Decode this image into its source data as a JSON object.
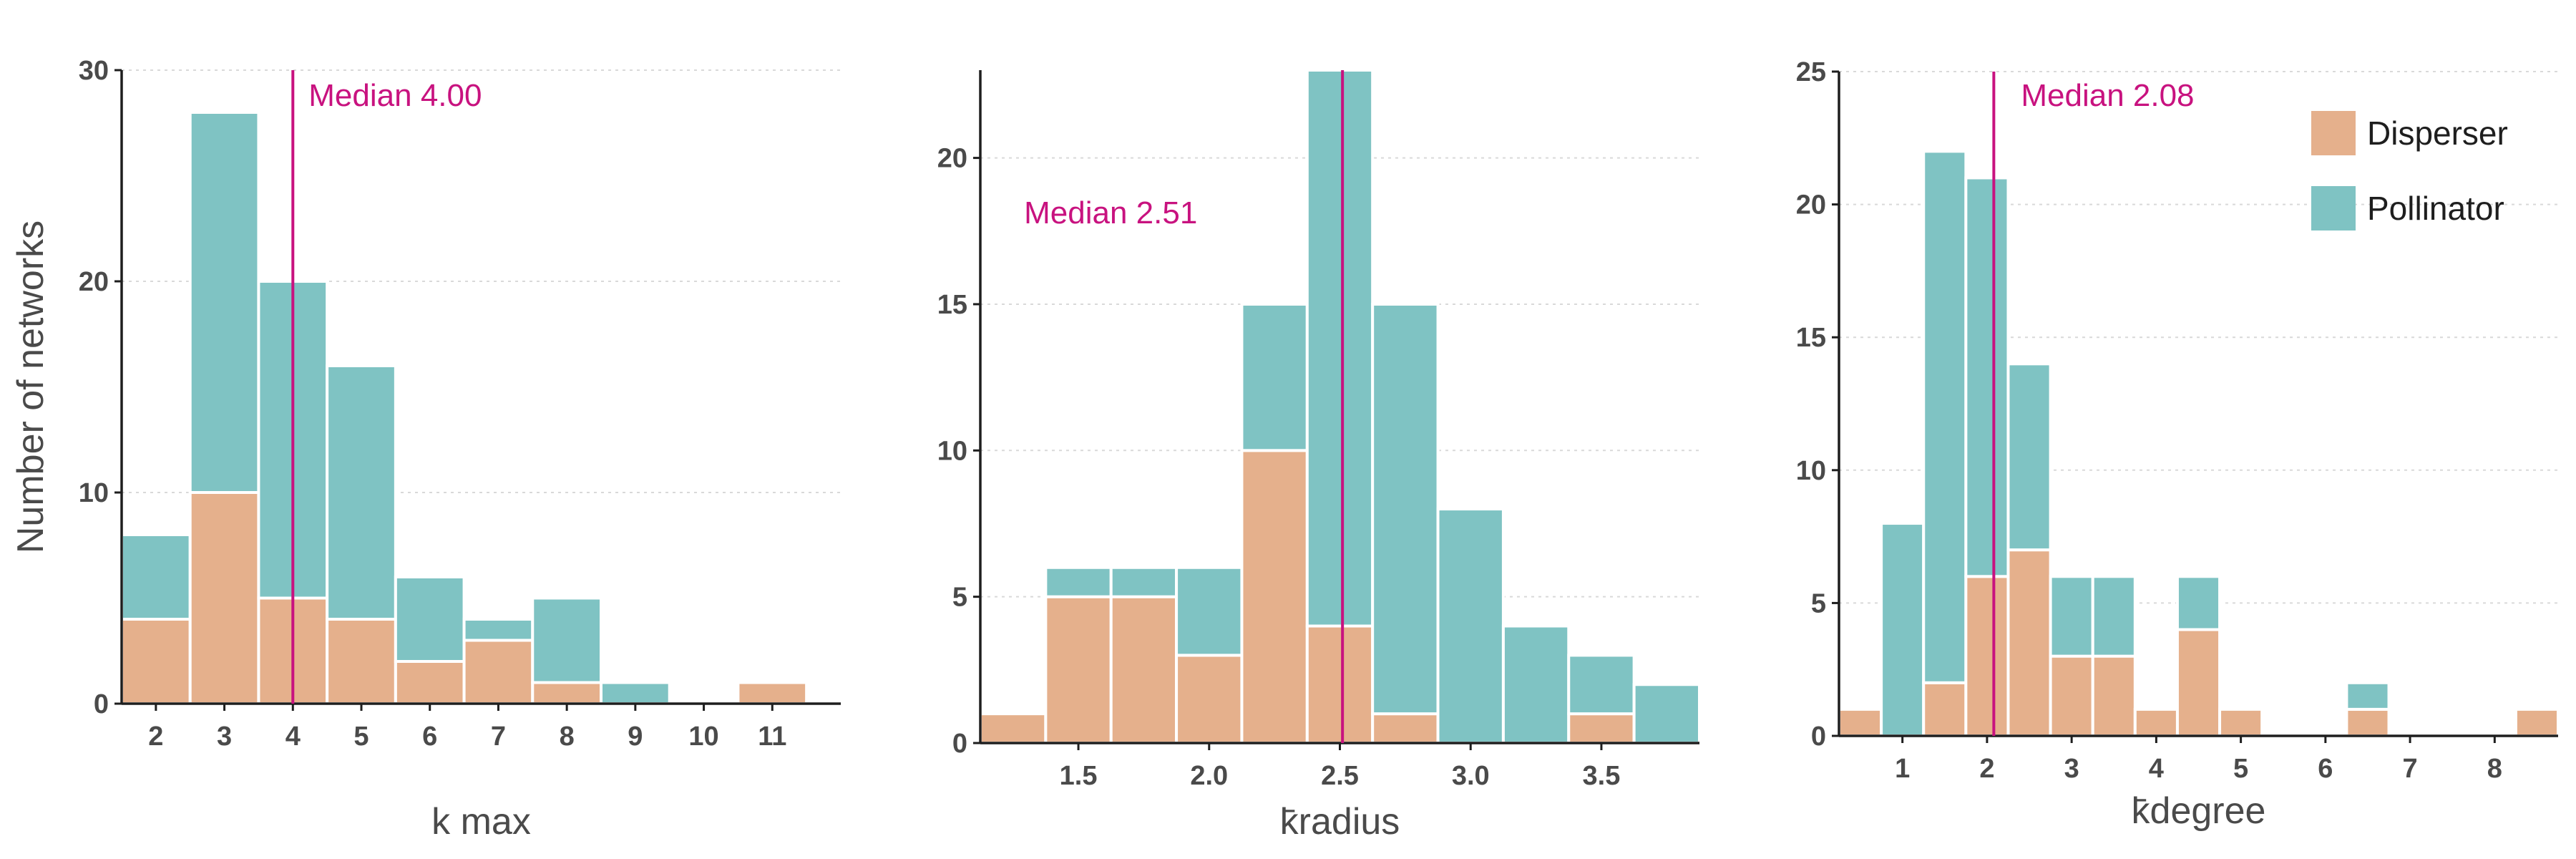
{
  "chart_data": [
    {
      "type": "bar",
      "stacked": true,
      "xlabel": "k max",
      "ylabel": "Number of networks",
      "xlim": [
        1.5,
        12
      ],
      "ylim": [
        0,
        30
      ],
      "xticks": [
        2,
        3,
        4,
        5,
        6,
        7,
        8,
        9,
        10,
        11
      ],
      "yticks": [
        0,
        10,
        20,
        30
      ],
      "bin_width": 1,
      "bins": [
        2,
        3,
        4,
        5,
        6,
        7,
        8,
        9,
        10,
        11
      ],
      "series": [
        {
          "name": "Disperser",
          "color": "#e5b08c",
          "values": [
            4,
            10,
            5,
            4,
            2,
            3,
            1,
            0,
            0,
            1
          ]
        },
        {
          "name": "Pollinator",
          "color": "#7fc3c3",
          "values": [
            4,
            18,
            15,
            12,
            4,
            1,
            4,
            1,
            0,
            0
          ]
        }
      ],
      "median": {
        "value": 4.0,
        "label": "Median 4.00",
        "color": "#c8127f",
        "label_pos": "top-right"
      },
      "grid": "horizontal"
    },
    {
      "type": "bar",
      "stacked": true,
      "xlabel": "k̄radius",
      "ylabel": "",
      "xlim": [
        1.125,
        3.875
      ],
      "ylim": [
        0,
        23
      ],
      "xticks": [
        1.5,
        2.0,
        2.5,
        3.0,
        3.5
      ],
      "xtick_labels": [
        "1.5",
        "2.0",
        "2.5",
        "3.0",
        "3.5"
      ],
      "yticks": [
        0,
        5,
        10,
        15,
        20
      ],
      "bin_width": 0.25,
      "bins": [
        1.25,
        1.5,
        1.75,
        2.0,
        2.25,
        2.5,
        2.75,
        3.0,
        3.25,
        3.5,
        3.75
      ],
      "series": [
        {
          "name": "Disperser",
          "color": "#e5b08c",
          "values": [
            1,
            5,
            5,
            3,
            10,
            4,
            1,
            0,
            0,
            1,
            0
          ]
        },
        {
          "name": "Pollinator",
          "color": "#7fc3c3",
          "values": [
            0,
            1,
            1,
            3,
            5,
            19,
            14,
            8,
            4,
            2,
            2
          ]
        }
      ],
      "median": {
        "value": 2.51,
        "label": "Median 2.51",
        "color": "#c8127f",
        "label_pos": "top-left"
      },
      "grid": "horizontal"
    },
    {
      "type": "bar",
      "stacked": true,
      "xlabel": "k̄degree",
      "ylabel": "",
      "xlim": [
        0.25,
        8.75
      ],
      "ylim": [
        0,
        25
      ],
      "xticks": [
        1,
        2,
        3,
        4,
        5,
        6,
        7,
        8
      ],
      "yticks": [
        0,
        5,
        10,
        15,
        20,
        25
      ],
      "bin_width": 0.5,
      "bins": [
        0.5,
        1.0,
        1.5,
        2.0,
        2.5,
        3.0,
        3.5,
        4.0,
        4.5,
        5.0,
        5.5,
        6.0,
        6.5,
        7.0,
        7.5,
        8.0,
        8.5
      ],
      "series": [
        {
          "name": "Disperser",
          "color": "#e5b08c",
          "values": [
            1,
            0,
            2,
            6,
            7,
            3,
            3,
            1,
            4,
            1,
            0,
            0,
            1,
            0,
            0,
            0,
            1
          ]
        },
        {
          "name": "Pollinator",
          "color": "#7fc3c3",
          "values": [
            0,
            8,
            20,
            15,
            7,
            3,
            3,
            0,
            2,
            0,
            0,
            0,
            1,
            0,
            0,
            0,
            0
          ]
        }
      ],
      "median": {
        "value": 2.08,
        "label": "Median 2.08",
        "color": "#c8127f",
        "label_pos": "top-right"
      },
      "grid": "horizontal",
      "legend": {
        "position": "top-right",
        "entries": [
          "Disperser",
          "Pollinator"
        ]
      }
    }
  ]
}
